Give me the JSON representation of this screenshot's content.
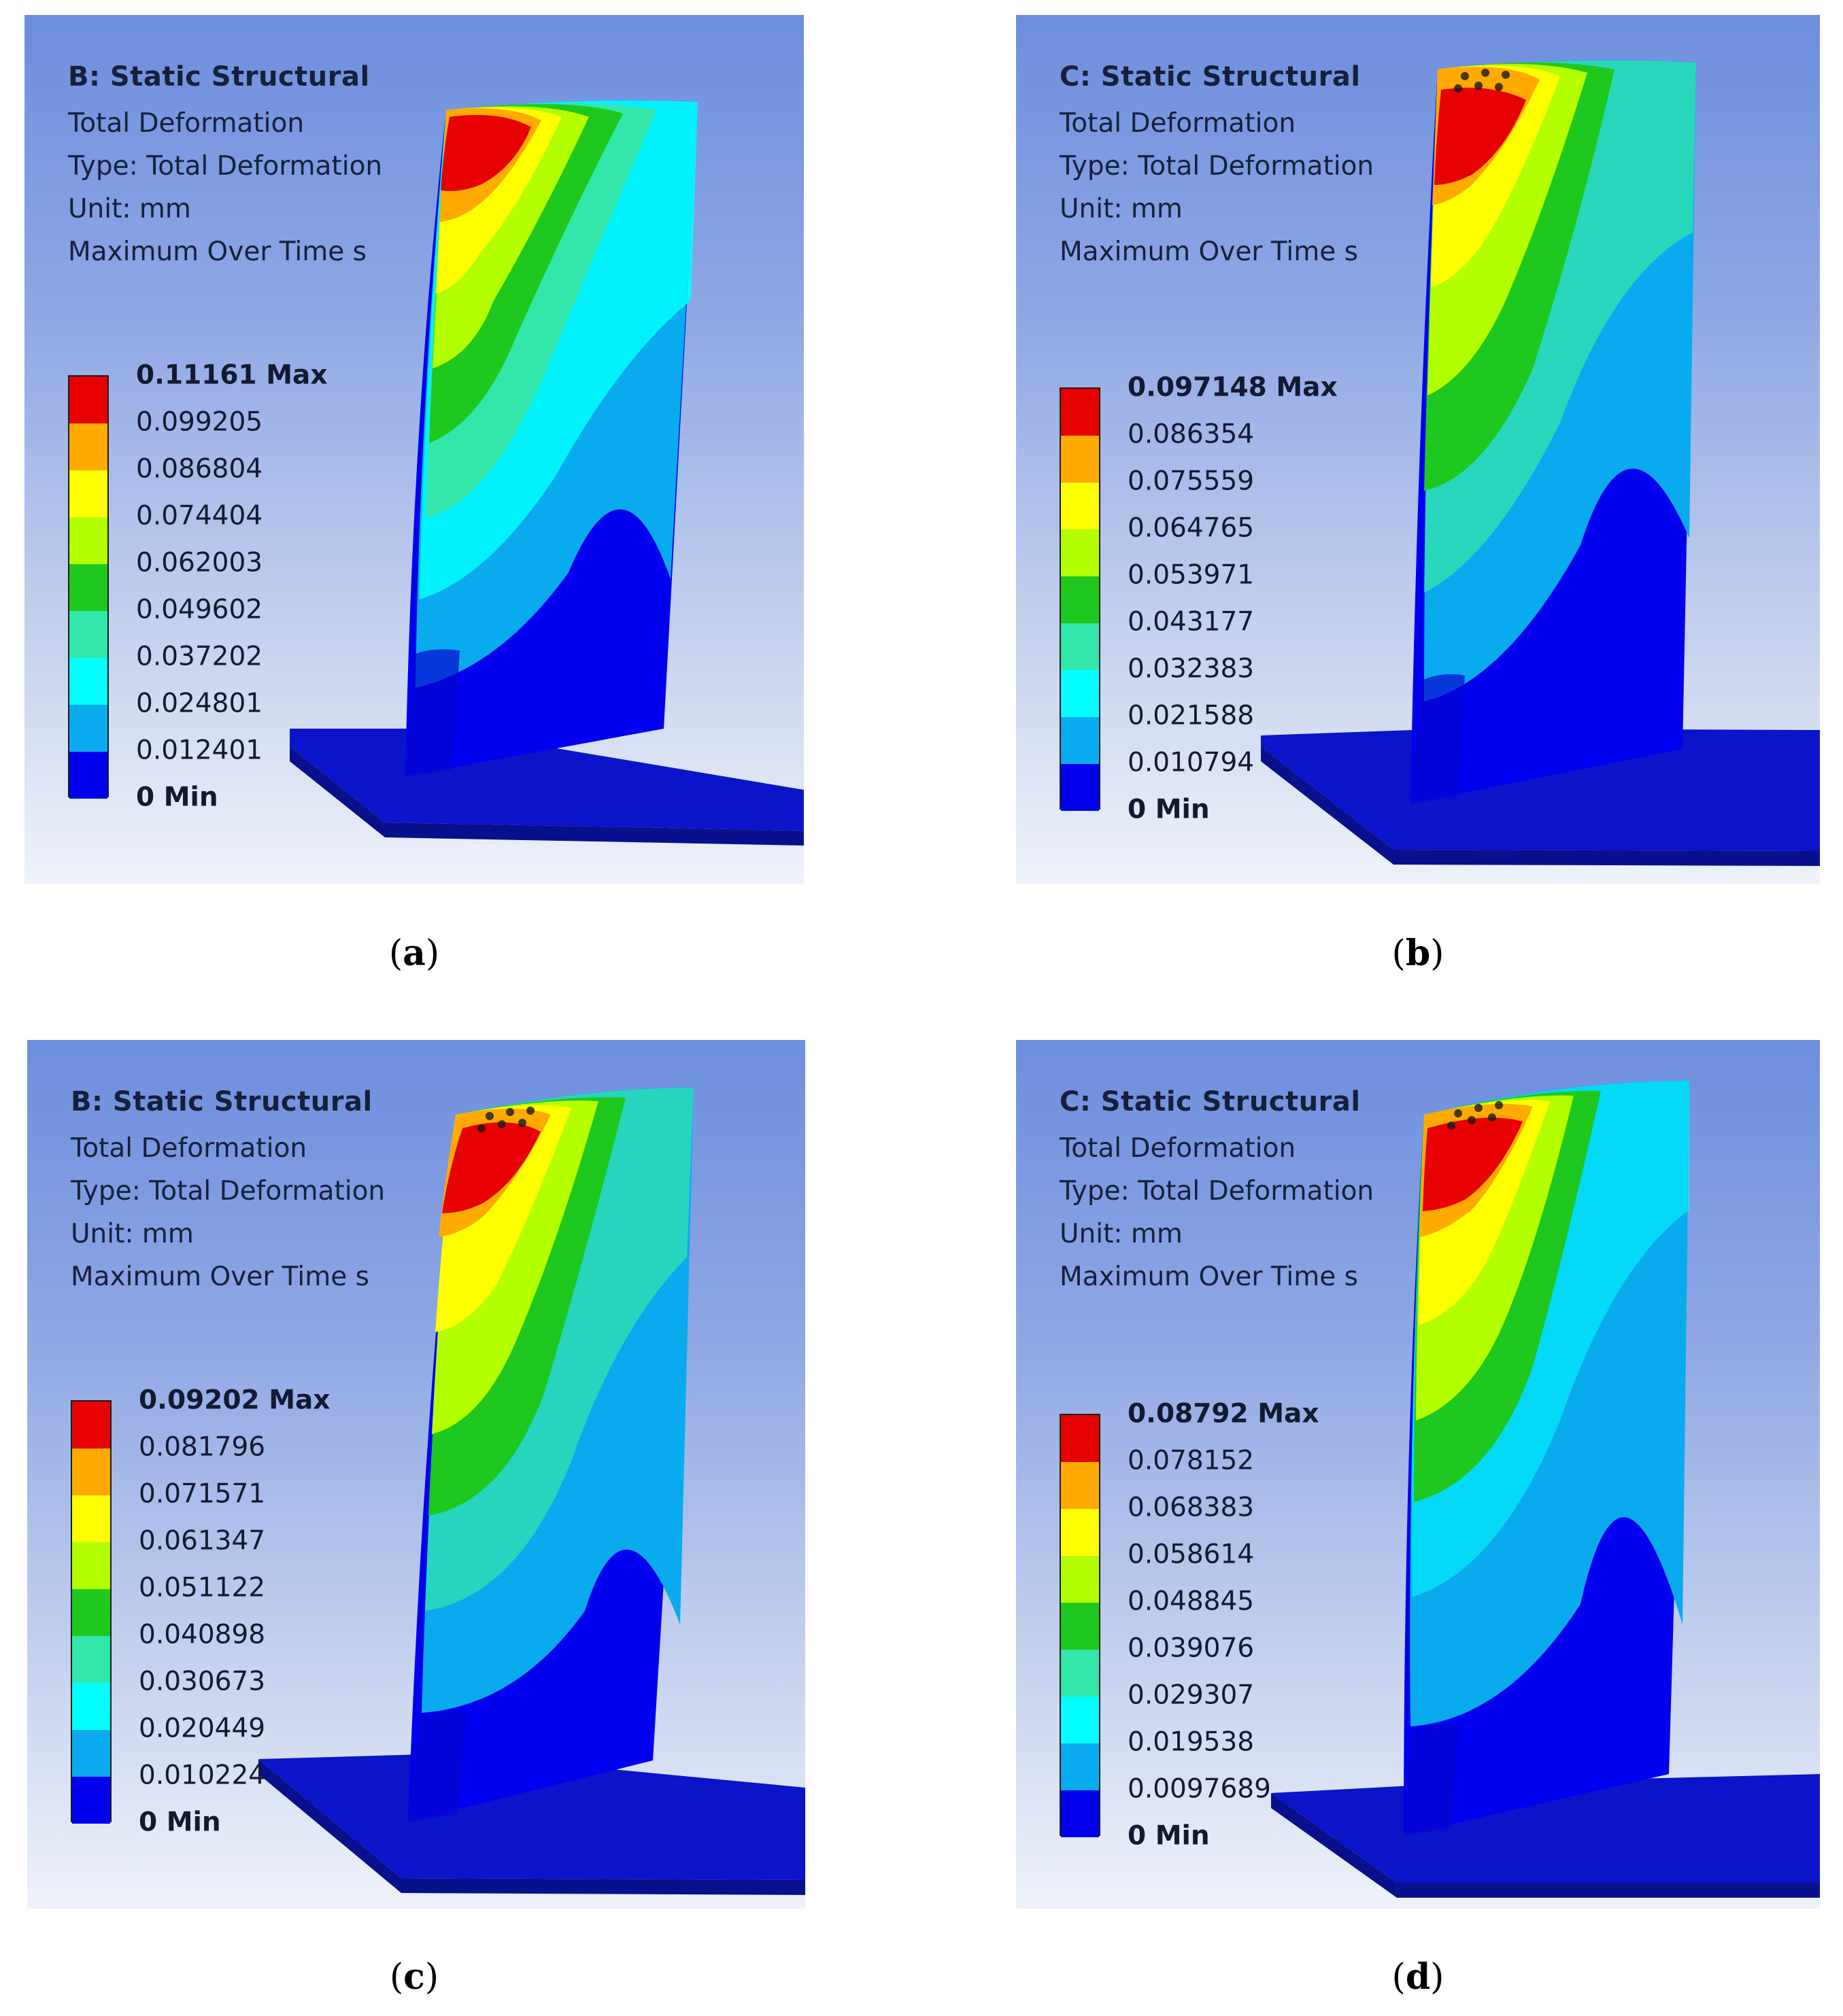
{
  "panels": [
    {
      "id": "a",
      "caption_letter": "a",
      "title": "B: Static Structural",
      "lines": [
        "Total Deformation",
        "Type: Total Deformation",
        "Unit: mm",
        "Maximum Over Time s"
      ],
      "legend": [
        "0.11161 Max",
        "0.099205",
        "0.086804",
        "0.074404",
        "0.062003",
        "0.049602",
        "0.037202",
        "0.024801",
        "0.012401",
        "0 Min"
      ],
      "cap_holes": false
    },
    {
      "id": "b",
      "caption_letter": "b",
      "title": "C: Static Structural",
      "lines": [
        "Total Deformation",
        "Type: Total Deformation",
        "Unit: mm",
        "Maximum Over Time s"
      ],
      "legend": [
        "0.097148 Max",
        "0.086354",
        "0.075559",
        "0.064765",
        "0.053971",
        "0.043177",
        "0.032383",
        "0.021588",
        "0.010794",
        "0 Min"
      ],
      "cap_holes": true
    },
    {
      "id": "c",
      "caption_letter": "c",
      "title": "B: Static Structural",
      "lines": [
        "Total Deformation",
        "Type: Total Deformation",
        "Unit: mm",
        "Maximum Over Time s"
      ],
      "legend": [
        "0.09202 Max",
        "0.081796",
        "0.071571",
        "0.061347",
        "0.051122",
        "0.040898",
        "0.030673",
        "0.020449",
        "0.010224",
        "0 Min"
      ],
      "cap_holes": true
    },
    {
      "id": "d",
      "caption_letter": "d",
      "title": "C: Static Structural",
      "lines": [
        "Total Deformation",
        "Type: Total Deformation",
        "Unit: mm",
        "Maximum Over Time s"
      ],
      "legend": [
        "0.08792 Max",
        "0.078152",
        "0.068383",
        "0.058614",
        "0.048845",
        "0.039076",
        "0.029307",
        "0.019538",
        "0.0097689",
        "0 Min"
      ],
      "cap_holes": true
    }
  ],
  "colors": {
    "scale": [
      "#e60000",
      "#ffaa00",
      "#ffff00",
      "#b3ff00",
      "#1ec81e",
      "#33e6aa",
      "#00ffff",
      "#0aaaee",
      "#0000ee"
    ],
    "base": "#0a14c8",
    "base_dark": "#08108e"
  }
}
